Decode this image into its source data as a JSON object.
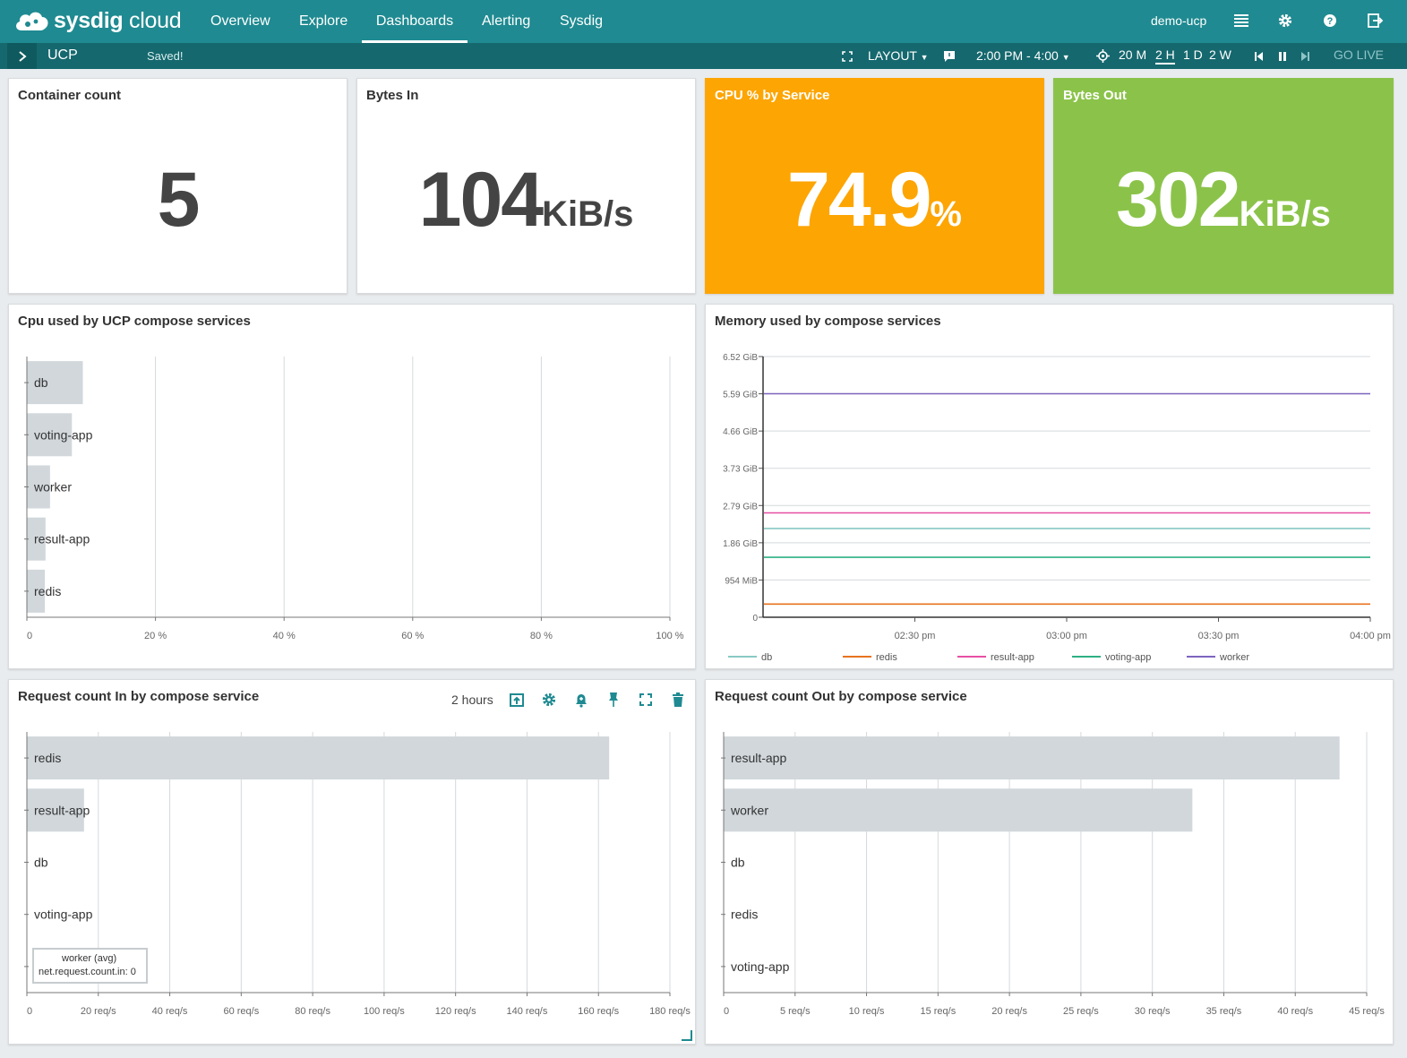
{
  "app": {
    "brand_bold": "sysdig",
    "brand_light": " cloud"
  },
  "nav": {
    "tabs": [
      {
        "label": "Overview"
      },
      {
        "label": "Explore"
      },
      {
        "label": "Dashboards"
      },
      {
        "label": "Alerting"
      },
      {
        "label": "Sysdig"
      }
    ],
    "active": "Dashboards",
    "user": "demo-ucp",
    "icons": [
      "list-icon",
      "gear-icon",
      "help-icon",
      "logout-icon"
    ]
  },
  "subbar": {
    "dashboard_name": "UCP",
    "status": "Saved!",
    "layout_label": "LAYOUT",
    "time_range": "2:00 PM - 4:00",
    "time_options": [
      "20 M",
      "2 H",
      "1 D",
      "2 W"
    ],
    "selected_time": "2 H",
    "go_live": "GO LIVE"
  },
  "panels": {
    "container_count": {
      "title": "Container count",
      "value": "5",
      "unit": ""
    },
    "bytes_in": {
      "title": "Bytes In",
      "value": "104",
      "unit": "KiB/s"
    },
    "cpu_service": {
      "title": "CPU % by Service",
      "value": "74.9",
      "unit": "%",
      "color": "#fda502"
    },
    "bytes_out": {
      "title": "Bytes Out",
      "value": "302",
      "unit": "KiB/s",
      "color": "#8bc34a"
    },
    "cpu_ucp": {
      "title": "Cpu used by UCP compose services"
    },
    "memory": {
      "title": "Memory used by compose services"
    },
    "req_in": {
      "title": "Request count In by compose service",
      "range_label": "2 hours"
    },
    "req_out": {
      "title": "Request count Out by compose service"
    }
  },
  "tooltip": {
    "line1": "worker (avg)",
    "line2": "net.request.count.in: 0"
  },
  "chart_data": [
    {
      "type": "bar",
      "orientation": "horizontal",
      "title": "Cpu used by UCP compose services",
      "categories": [
        "db",
        "voting-app",
        "worker",
        "result-app",
        "redis"
      ],
      "values": [
        8.7,
        7.0,
        3.6,
        2.9,
        2.8
      ],
      "xlim": [
        0,
        100
      ],
      "xticks": [
        0,
        20,
        40,
        60,
        80,
        100
      ],
      "xtick_labels": [
        "0",
        "20 %",
        "40 %",
        "60 %",
        "80 %",
        "100 %"
      ],
      "bar_color": "#d1d7db",
      "grid": true
    },
    {
      "type": "line",
      "title": "Memory used by compose services",
      "x": [
        "02:00 pm",
        "04:00 pm"
      ],
      "xtick_labels": [
        "02:30 pm",
        "03:00 pm",
        "03:30 pm",
        "04:00 pm"
      ],
      "ytick_labels": [
        "0",
        "954 MiB",
        "1.86 GiB",
        "2.79 GiB",
        "3.73 GiB",
        "4.66 GiB",
        "5.59 GiB",
        "6.52 GiB"
      ],
      "ylim_gib": [
        0,
        6.52
      ],
      "series": [
        {
          "name": "db",
          "value_gib": 2.22,
          "color": "#88c9c4"
        },
        {
          "name": "redis",
          "value_gib": 0.33,
          "color": "#e8731f"
        },
        {
          "name": "result-app",
          "value_gib": 2.61,
          "color": "#e64fa4"
        },
        {
          "name": "voting-app",
          "value_gib": 1.5,
          "color": "#2eaf84"
        },
        {
          "name": "worker",
          "value_gib": 5.59,
          "color": "#7d64be"
        }
      ],
      "legend": "bottom",
      "grid": true
    },
    {
      "type": "bar",
      "orientation": "horizontal",
      "title": "Request count In by compose service",
      "categories": [
        "redis",
        "result-app",
        "db",
        "voting-app",
        "worker"
      ],
      "values": [
        163,
        16,
        0,
        0,
        0
      ],
      "xlim": [
        0,
        180
      ],
      "xticks": [
        0,
        20,
        40,
        60,
        80,
        100,
        120,
        140,
        160,
        180
      ],
      "xtick_labels": [
        "0",
        "20 req/s",
        "40 req/s",
        "60 req/s",
        "80 req/s",
        "100 req/s",
        "120 req/s",
        "140 req/s",
        "160 req/s",
        "180 req/s"
      ],
      "bar_color": "#d1d7db",
      "grid": true
    },
    {
      "type": "bar",
      "orientation": "horizontal",
      "title": "Request count Out by compose service",
      "categories": [
        "result-app",
        "worker",
        "db",
        "redis",
        "voting-app"
      ],
      "values": [
        43.1,
        32.8,
        0,
        0,
        0
      ],
      "xlim": [
        0,
        45
      ],
      "xticks": [
        0,
        5,
        10,
        15,
        20,
        25,
        30,
        35,
        40,
        45
      ],
      "xtick_labels": [
        "0",
        "5 req/s",
        "10 req/s",
        "15 req/s",
        "20 req/s",
        "25 req/s",
        "30 req/s",
        "35 req/s",
        "40 req/s",
        "45 req/s"
      ],
      "bar_color": "#d1d7db",
      "grid": true
    }
  ]
}
